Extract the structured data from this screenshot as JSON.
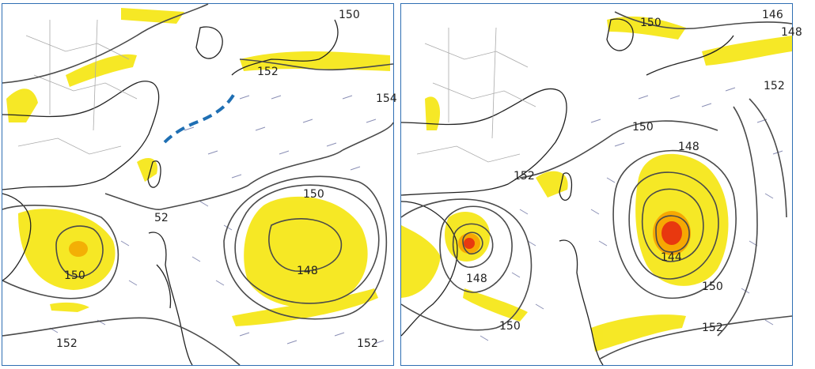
{
  "colors": {
    "frame": "#2f6fb3",
    "contour": "#4a4a4a",
    "wind_shade": "#f5e400",
    "core": "#e8380f",
    "front": "#1f6fb3",
    "land": "#222222"
  },
  "left_panel": {
    "contour_labels": [
      "150",
      "152",
      "154",
      "150",
      "148",
      "52",
      "150",
      "152",
      "152"
    ]
  },
  "right_panel": {
    "contour_labels": [
      "150",
      "146",
      "148",
      "152",
      "150",
      "148",
      "152",
      "144",
      "148",
      "150",
      "150",
      "152"
    ]
  }
}
